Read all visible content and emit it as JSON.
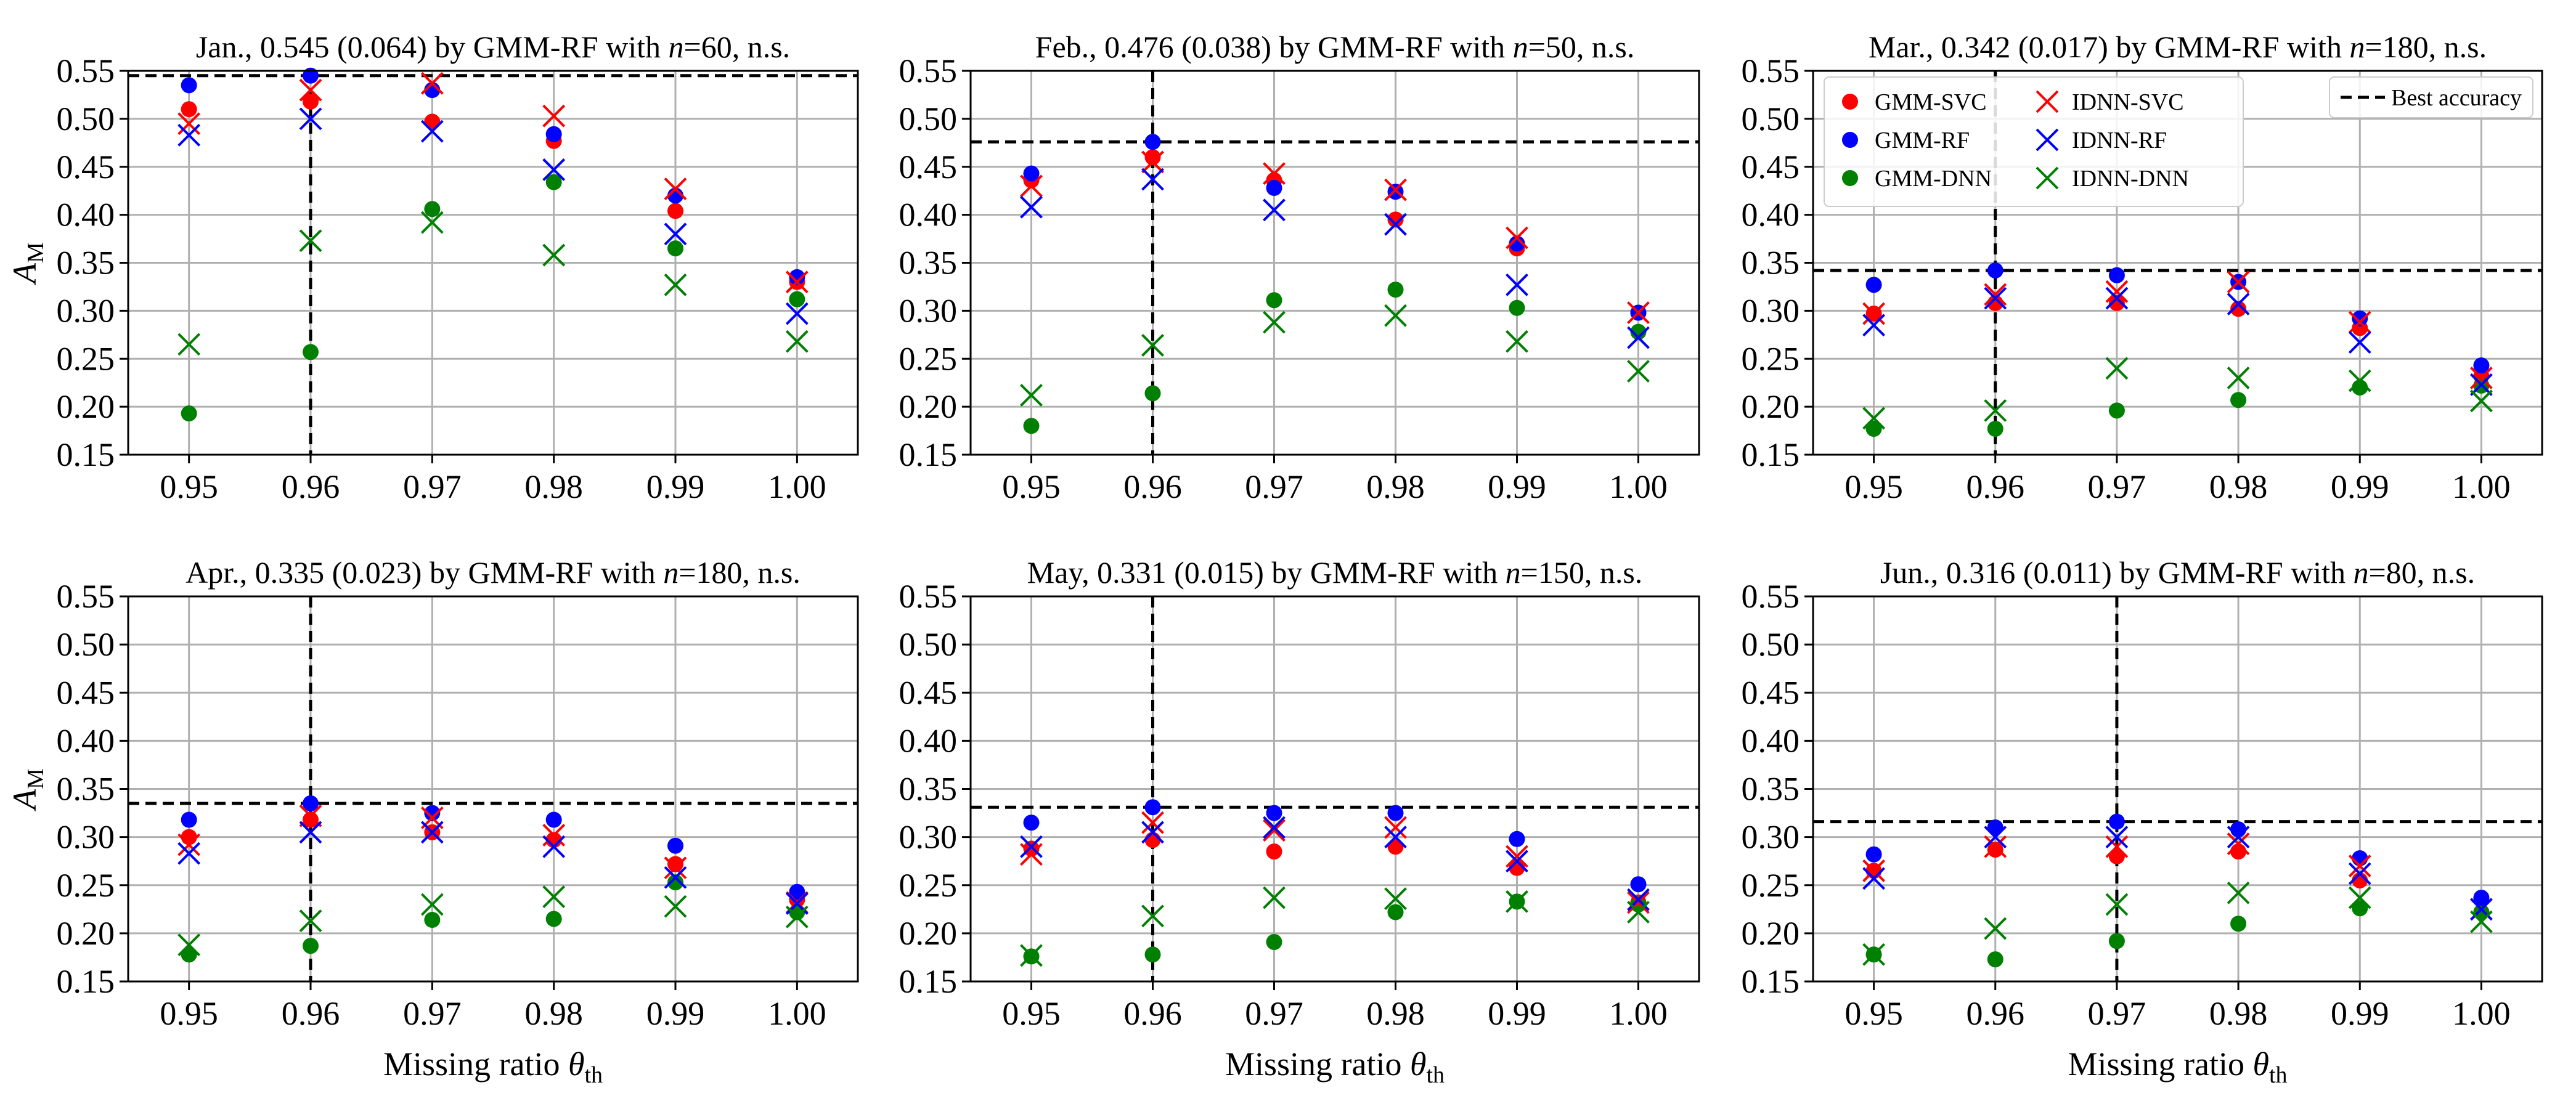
{
  "chart_data": [
    {
      "type": "scatter",
      "title": "Jan., 0.545 (0.064) by GMM-RF with n=60, n.s.",
      "title_parts": {
        "pre": "Jan., 0.545 (0.064) by GMM-RF with ",
        "var": "n",
        "post": "=60, n.s."
      },
      "ylabel": "A_M",
      "xlabel": "",
      "x": [
        0.95,
        0.96,
        0.97,
        0.98,
        0.99,
        1.0
      ],
      "xlim": [
        0.945,
        1.005
      ],
      "ylim": [
        0.15,
        0.55
      ],
      "best_accuracy": 0.545,
      "best_theta": 0.96,
      "series": [
        {
          "name": "GMM-SVC",
          "values": [
            0.51,
            0.518,
            0.497,
            0.477,
            0.404,
            0.33
          ]
        },
        {
          "name": "GMM-RF",
          "values": [
            0.535,
            0.545,
            0.53,
            0.484,
            0.42,
            0.335
          ]
        },
        {
          "name": "GMM-DNN",
          "values": [
            0.193,
            0.257,
            0.406,
            0.434,
            0.365,
            0.312
          ]
        },
        {
          "name": "IDNN-SVC",
          "values": [
            0.495,
            0.53,
            0.537,
            0.503,
            0.427,
            0.33
          ]
        },
        {
          "name": "IDNN-RF",
          "values": [
            0.483,
            0.5,
            0.487,
            0.447,
            0.38,
            0.297
          ]
        },
        {
          "name": "IDNN-DNN",
          "values": [
            0.265,
            0.373,
            0.392,
            0.358,
            0.327,
            0.268
          ]
        }
      ]
    },
    {
      "type": "scatter",
      "title": "Feb., 0.476 (0.038) by GMM-RF with n=50, n.s.",
      "title_parts": {
        "pre": "Feb., 0.476 (0.038) by GMM-RF with ",
        "var": "n",
        "post": "=50, n.s."
      },
      "ylabel": "",
      "xlabel": "",
      "x": [
        0.95,
        0.96,
        0.97,
        0.98,
        0.99,
        1.0
      ],
      "xlim": [
        0.945,
        1.005
      ],
      "ylim": [
        0.15,
        0.55
      ],
      "best_accuracy": 0.476,
      "best_theta": 0.96,
      "series": [
        {
          "name": "GMM-SVC",
          "values": [
            0.436,
            0.46,
            0.436,
            0.395,
            0.365,
            0.298
          ]
        },
        {
          "name": "GMM-RF",
          "values": [
            0.443,
            0.476,
            0.428,
            0.424,
            0.37,
            0.298
          ]
        },
        {
          "name": "GMM-DNN",
          "values": [
            0.18,
            0.214,
            0.311,
            0.322,
            0.303,
            0.278
          ]
        },
        {
          "name": "IDNN-SVC",
          "values": [
            0.43,
            0.455,
            0.443,
            0.426,
            0.376,
            0.298
          ]
        },
        {
          "name": "IDNN-RF",
          "values": [
            0.408,
            0.437,
            0.405,
            0.39,
            0.327,
            0.272
          ]
        },
        {
          "name": "IDNN-DNN",
          "values": [
            0.212,
            0.264,
            0.288,
            0.295,
            0.268,
            0.237
          ]
        }
      ]
    },
    {
      "type": "scatter",
      "title": "Mar., 0.342 (0.017) by GMM-RF with n=180, n.s.",
      "title_parts": {
        "pre": "Mar., 0.342 (0.017) by GMM-RF with ",
        "var": "n",
        "post": "=180, n.s."
      },
      "ylabel": "",
      "xlabel": "",
      "x": [
        0.95,
        0.96,
        0.97,
        0.98,
        0.99,
        1.0
      ],
      "xlim": [
        0.945,
        1.005
      ],
      "ylim": [
        0.15,
        0.55
      ],
      "best_accuracy": 0.342,
      "best_theta": 0.96,
      "series": [
        {
          "name": "GMM-SVC",
          "values": [
            0.297,
            0.308,
            0.308,
            0.302,
            0.282,
            0.232
          ]
        },
        {
          "name": "GMM-RF",
          "values": [
            0.327,
            0.342,
            0.337,
            0.33,
            0.292,
            0.243
          ]
        },
        {
          "name": "GMM-DNN",
          "values": [
            0.177,
            0.177,
            0.196,
            0.207,
            0.22,
            0.222
          ]
        },
        {
          "name": "IDNN-SVC",
          "values": [
            0.297,
            0.317,
            0.32,
            0.33,
            0.288,
            0.23
          ]
        },
        {
          "name": "IDNN-RF",
          "values": [
            0.285,
            0.313,
            0.313,
            0.307,
            0.267,
            0.223
          ]
        },
        {
          "name": "IDNN-DNN",
          "values": [
            0.188,
            0.196,
            0.24,
            0.23,
            0.227,
            0.206
          ]
        }
      ]
    },
    {
      "type": "scatter",
      "title": "Apr., 0.335 (0.023) by GMM-RF with n=180, n.s.",
      "title_parts": {
        "pre": "Apr., 0.335 (0.023) by GMM-RF with ",
        "var": "n",
        "post": "=180, n.s."
      },
      "ylabel": "A_M",
      "xlabel": "Missing ratio θ_th",
      "x": [
        0.95,
        0.96,
        0.97,
        0.98,
        0.99,
        1.0
      ],
      "xlim": [
        0.945,
        1.005
      ],
      "ylim": [
        0.15,
        0.55
      ],
      "best_accuracy": 0.335,
      "best_theta": 0.96,
      "series": [
        {
          "name": "GMM-SVC",
          "values": [
            0.3,
            0.318,
            0.305,
            0.297,
            0.272,
            0.235
          ]
        },
        {
          "name": "GMM-RF",
          "values": [
            0.318,
            0.335,
            0.325,
            0.318,
            0.291,
            0.243
          ]
        },
        {
          "name": "GMM-DNN",
          "values": [
            0.178,
            0.187,
            0.214,
            0.215,
            0.253,
            0.222
          ]
        },
        {
          "name": "IDNN-SVC",
          "values": [
            0.292,
            0.322,
            0.32,
            0.302,
            0.268,
            0.232
          ]
        },
        {
          "name": "IDNN-RF",
          "values": [
            0.283,
            0.305,
            0.305,
            0.29,
            0.258,
            0.231
          ]
        },
        {
          "name": "IDNN-DNN",
          "values": [
            0.188,
            0.213,
            0.23,
            0.238,
            0.228,
            0.217
          ]
        }
      ]
    },
    {
      "type": "scatter",
      "title": "May, 0.331 (0.015) by GMM-RF with n=150, n.s.",
      "title_parts": {
        "pre": "May, 0.331 (0.015) by GMM-RF with ",
        "var": "n",
        "post": "=150, n.s."
      },
      "ylabel": "",
      "xlabel": "Missing ratio θ_th",
      "x": [
        0.95,
        0.96,
        0.97,
        0.98,
        0.99,
        1.0
      ],
      "xlim": [
        0.945,
        1.005
      ],
      "ylim": [
        0.15,
        0.55
      ],
      "best_accuracy": 0.331,
      "best_theta": 0.96,
      "series": [
        {
          "name": "GMM-SVC",
          "values": [
            0.288,
            0.297,
            0.285,
            0.29,
            0.268,
            0.232
          ]
        },
        {
          "name": "GMM-RF",
          "values": [
            0.315,
            0.331,
            0.325,
            0.325,
            0.298,
            0.251
          ]
        },
        {
          "name": "GMM-DNN",
          "values": [
            0.176,
            0.178,
            0.191,
            0.222,
            0.233,
            0.23
          ]
        },
        {
          "name": "IDNN-SVC",
          "values": [
            0.282,
            0.315,
            0.307,
            0.31,
            0.28,
            0.232
          ]
        },
        {
          "name": "IDNN-RF",
          "values": [
            0.29,
            0.305,
            0.31,
            0.3,
            0.275,
            0.235
          ]
        },
        {
          "name": "IDNN-DNN",
          "values": [
            0.177,
            0.218,
            0.237,
            0.236,
            0.233,
            0.222
          ]
        }
      ]
    },
    {
      "type": "scatter",
      "title": "Jun., 0.316 (0.011) by GMM-RF with n=80, n.s.",
      "title_parts": {
        "pre": "Jun., 0.316 (0.011) by GMM-RF with ",
        "var": "n",
        "post": "=80, n.s."
      },
      "ylabel": "",
      "xlabel": "Missing ratio θ_th",
      "x": [
        0.95,
        0.96,
        0.97,
        0.98,
        0.99,
        1.0
      ],
      "xlim": [
        0.945,
        1.005
      ],
      "ylim": [
        0.15,
        0.55
      ],
      "best_accuracy": 0.316,
      "best_theta": 0.97,
      "series": [
        {
          "name": "GMM-SVC",
          "values": [
            0.265,
            0.287,
            0.28,
            0.285,
            0.255,
            0.222
          ]
        },
        {
          "name": "GMM-RF",
          "values": [
            0.282,
            0.31,
            0.316,
            0.308,
            0.278,
            0.237
          ]
        },
        {
          "name": "GMM-DNN",
          "values": [
            0.178,
            0.173,
            0.192,
            0.21,
            0.226,
            0.222
          ]
        },
        {
          "name": "IDNN-SVC",
          "values": [
            0.265,
            0.29,
            0.29,
            0.293,
            0.27,
            0.225
          ]
        },
        {
          "name": "IDNN-RF",
          "values": [
            0.257,
            0.3,
            0.3,
            0.3,
            0.262,
            0.225
          ]
        },
        {
          "name": "IDNN-DNN",
          "values": [
            0.178,
            0.205,
            0.23,
            0.242,
            0.237,
            0.212
          ]
        }
      ]
    }
  ],
  "legend": {
    "entries": [
      {
        "name": "GMM-SVC",
        "color": "#ff0000",
        "marker": "circle"
      },
      {
        "name": "GMM-RF",
        "color": "#0000ff",
        "marker": "circle"
      },
      {
        "name": "GMM-DNN",
        "color": "#008000",
        "marker": "circle"
      },
      {
        "name": "IDNN-SVC",
        "color": "#ff0000",
        "marker": "x"
      },
      {
        "name": "IDNN-RF",
        "color": "#0000ff",
        "marker": "x"
      },
      {
        "name": "IDNN-DNN",
        "color": "#008000",
        "marker": "x"
      }
    ],
    "best_label": "Best accuracy",
    "placement": "top of the March panel"
  },
  "colors": {
    "GMM-SVC": "#ff0000",
    "GMM-RF": "#0000ff",
    "GMM-DNN": "#008000",
    "IDNN-SVC": "#ff0000",
    "IDNN-RF": "#0000ff",
    "IDNN-DNN": "#008000"
  },
  "y_ticks": [
    "0.15",
    "0.20",
    "0.25",
    "0.30",
    "0.35",
    "0.40",
    "0.45",
    "0.50",
    "0.55"
  ],
  "x_ticks": [
    "0.95",
    "0.96",
    "0.97",
    "0.98",
    "0.99",
    "1.00"
  ]
}
